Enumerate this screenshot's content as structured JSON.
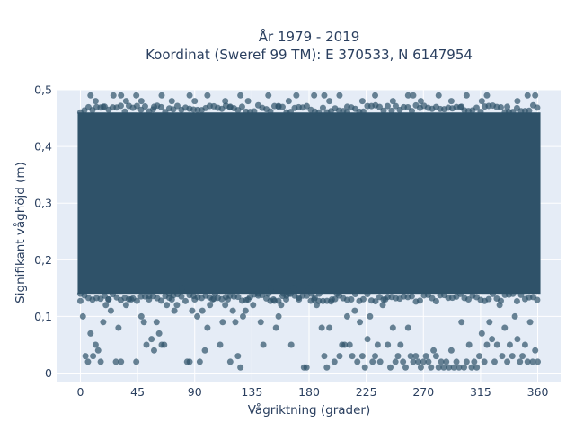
{
  "chart_data": {
    "type": "scatter",
    "title_line1": "År 1979 - 2019",
    "title_line2": "Koordinat (Sweref 99 TM): E 370533, N 6147954",
    "xlabel": "Vågriktning (grader)",
    "ylabel": "Signifikant våghöjd (m)",
    "xlim": [
      -18,
      378
    ],
    "ylim": [
      -0.015,
      0.5
    ],
    "x_ticks": [
      0,
      45,
      90,
      135,
      180,
      225,
      270,
      315,
      360
    ],
    "x_tick_labels": [
      "0",
      "45",
      "90",
      "135",
      "180",
      "225",
      "270",
      "315",
      "360"
    ],
    "y_ticks": [
      0,
      0.1,
      0.2,
      0.3,
      0.4,
      0.5
    ],
    "y_tick_labels": [
      "0",
      "0,1",
      "0,2",
      "0,3",
      "0,4",
      "0,5"
    ],
    "grid": true,
    "colors": {
      "marker": "#2f5269",
      "plot_background": "#e5ecf6",
      "grid": "#ffffff",
      "text": "#2a3f5f"
    },
    "marker_opacity": 0.7,
    "dense_band": {
      "x_range": [
        0,
        360
      ],
      "y_range": [
        0.14,
        0.46
      ]
    },
    "series": [
      {
        "values": [
          [
            0,
            0.14
          ],
          [
            2,
            0.1
          ],
          [
            4,
            0.03
          ],
          [
            6,
            0.02
          ],
          [
            8,
            0.07
          ],
          [
            10,
            0.03
          ],
          [
            12,
            0.05
          ],
          [
            14,
            0.04
          ],
          [
            16,
            0.02
          ],
          [
            18,
            0.09
          ],
          [
            20,
            0.12
          ],
          [
            22,
            0.13
          ],
          [
            24,
            0.11
          ],
          [
            28,
            0.02
          ],
          [
            30,
            0.08
          ],
          [
            32,
            0.02
          ],
          [
            36,
            0.12
          ],
          [
            40,
            0.13
          ],
          [
            44,
            0.02
          ],
          [
            48,
            0.1
          ],
          [
            50,
            0.09
          ],
          [
            52,
            0.05
          ],
          [
            54,
            0.13
          ],
          [
            56,
            0.06
          ],
          [
            58,
            0.04
          ],
          [
            60,
            0.09
          ],
          [
            62,
            0.07
          ],
          [
            64,
            0.05
          ],
          [
            66,
            0.05
          ],
          [
            68,
            0.12
          ],
          [
            70,
            0.14
          ],
          [
            72,
            0.13
          ],
          [
            74,
            0.11
          ],
          [
            76,
            0.12
          ],
          [
            80,
            0.15
          ],
          [
            84,
            0.02
          ],
          [
            86,
            0.02
          ],
          [
            88,
            0.11
          ],
          [
            90,
            0.13
          ],
          [
            92,
            0.1
          ],
          [
            94,
            0.02
          ],
          [
            96,
            0.11
          ],
          [
            98,
            0.04
          ],
          [
            100,
            0.08
          ],
          [
            102,
            0.12
          ],
          [
            104,
            0.13
          ],
          [
            106,
            0.14
          ],
          [
            110,
            0.05
          ],
          [
            112,
            0.09
          ],
          [
            114,
            0.12
          ],
          [
            116,
            0.13
          ],
          [
            118,
            0.02
          ],
          [
            120,
            0.11
          ],
          [
            122,
            0.09
          ],
          [
            124,
            0.03
          ],
          [
            126,
            0.01
          ],
          [
            128,
            0.1
          ],
          [
            130,
            0.11
          ],
          [
            132,
            0.13
          ],
          [
            136,
            0.12
          ],
          [
            140,
            0.14
          ],
          [
            142,
            0.09
          ],
          [
            144,
            0.05
          ],
          [
            148,
            0.14
          ],
          [
            150,
            0.15
          ],
          [
            152,
            0.13
          ],
          [
            154,
            0.08
          ],
          [
            156,
            0.1
          ],
          [
            158,
            0.12
          ],
          [
            160,
            0.14
          ],
          [
            162,
            0.13
          ],
          [
            164,
            0.14
          ],
          [
            166,
            0.05
          ],
          [
            168,
            0.15
          ],
          [
            172,
            0.13
          ],
          [
            176,
            0.01
          ],
          [
            178,
            0.01
          ],
          [
            180,
            0.15
          ],
          [
            182,
            0.14
          ],
          [
            184,
            0.13
          ],
          [
            186,
            0.12
          ],
          [
            188,
            0.14
          ],
          [
            190,
            0.08
          ],
          [
            192,
            0.03
          ],
          [
            194,
            0.01
          ],
          [
            196,
            0.08
          ],
          [
            198,
            0.13
          ],
          [
            200,
            0.02
          ],
          [
            202,
            0.14
          ],
          [
            204,
            0.03
          ],
          [
            206,
            0.05
          ],
          [
            208,
            0.05
          ],
          [
            210,
            0.1
          ],
          [
            212,
            0.05
          ],
          [
            214,
            0.03
          ],
          [
            216,
            0.11
          ],
          [
            218,
            0.02
          ],
          [
            220,
            0.09
          ],
          [
            222,
            0.03
          ],
          [
            224,
            0.01
          ],
          [
            226,
            0.06
          ],
          [
            228,
            0.1
          ],
          [
            230,
            0.02
          ],
          [
            232,
            0.03
          ],
          [
            234,
            0.05
          ],
          [
            236,
            0.02
          ],
          [
            238,
            0.12
          ],
          [
            240,
            0.13
          ],
          [
            242,
            0.05
          ],
          [
            244,
            0.01
          ],
          [
            246,
            0.08
          ],
          [
            248,
            0.02
          ],
          [
            250,
            0.03
          ],
          [
            252,
            0.05
          ],
          [
            254,
            0.02
          ],
          [
            256,
            0.01
          ],
          [
            258,
            0.08
          ],
          [
            260,
            0.03
          ],
          [
            262,
            0.02
          ],
          [
            264,
            0.03
          ],
          [
            266,
            0.02
          ],
          [
            268,
            0.01
          ],
          [
            270,
            0.02
          ],
          [
            272,
            0.03
          ],
          [
            274,
            0.02
          ],
          [
            276,
            0.01
          ],
          [
            278,
            0.04
          ],
          [
            280,
            0.03
          ],
          [
            282,
            0.01
          ],
          [
            284,
            0.02
          ],
          [
            286,
            0.01
          ],
          [
            288,
            0.02
          ],
          [
            290,
            0.01
          ],
          [
            292,
            0.04
          ],
          [
            294,
            0.01
          ],
          [
            296,
            0.02
          ],
          [
            298,
            0.01
          ],
          [
            300,
            0.09
          ],
          [
            302,
            0.01
          ],
          [
            304,
            0.02
          ],
          [
            306,
            0.05
          ],
          [
            308,
            0.01
          ],
          [
            310,
            0.02
          ],
          [
            312,
            0.01
          ],
          [
            314,
            0.03
          ],
          [
            316,
            0.07
          ],
          [
            318,
            0.02
          ],
          [
            320,
            0.05
          ],
          [
            322,
            0.09
          ],
          [
            324,
            0.06
          ],
          [
            326,
            0.02
          ],
          [
            328,
            0.05
          ],
          [
            330,
            0.12
          ],
          [
            332,
            0.03
          ],
          [
            334,
            0.08
          ],
          [
            336,
            0.02
          ],
          [
            338,
            0.05
          ],
          [
            340,
            0.03
          ],
          [
            342,
            0.1
          ],
          [
            344,
            0.06
          ],
          [
            346,
            0.02
          ],
          [
            348,
            0.03
          ],
          [
            350,
            0.05
          ],
          [
            352,
            0.02
          ],
          [
            354,
            0.09
          ],
          [
            356,
            0.02
          ],
          [
            358,
            0.04
          ],
          [
            360,
            0.02
          ],
          [
            8,
            0.49
          ],
          [
            12,
            0.48
          ],
          [
            18,
            0.47
          ],
          [
            26,
            0.49
          ],
          [
            32,
            0.49
          ],
          [
            36,
            0.48
          ],
          [
            44,
            0.49
          ],
          [
            48,
            0.48
          ],
          [
            58,
            0.47
          ],
          [
            64,
            0.49
          ],
          [
            72,
            0.48
          ],
          [
            86,
            0.49
          ],
          [
            90,
            0.48
          ],
          [
            100,
            0.49
          ],
          [
            114,
            0.48
          ],
          [
            118,
            0.47
          ],
          [
            126,
            0.49
          ],
          [
            132,
            0.48
          ],
          [
            148,
            0.49
          ],
          [
            156,
            0.47
          ],
          [
            164,
            0.48
          ],
          [
            170,
            0.49
          ],
          [
            184,
            0.49
          ],
          [
            192,
            0.49
          ],
          [
            196,
            0.48
          ],
          [
            204,
            0.49
          ],
          [
            210,
            0.47
          ],
          [
            222,
            0.48
          ],
          [
            232,
            0.49
          ],
          [
            246,
            0.48
          ],
          [
            258,
            0.49
          ],
          [
            262,
            0.49
          ],
          [
            268,
            0.48
          ],
          [
            282,
            0.49
          ],
          [
            292,
            0.48
          ],
          [
            300,
            0.47
          ],
          [
            304,
            0.49
          ],
          [
            316,
            0.48
          ],
          [
            320,
            0.49
          ],
          [
            336,
            0.47
          ],
          [
            344,
            0.48
          ],
          [
            352,
            0.49
          ],
          [
            358,
            0.49
          ]
        ]
      }
    ]
  }
}
